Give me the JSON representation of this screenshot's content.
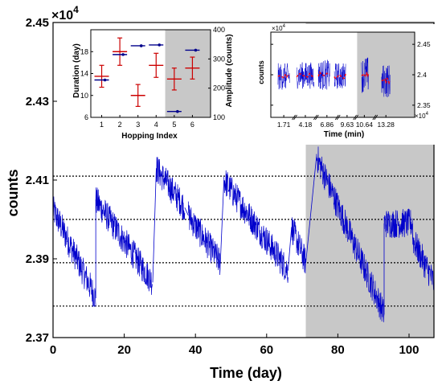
{
  "colors": {
    "signal": "#0000CC",
    "duration": "#CC0000",
    "amplitude": "#00008B",
    "shade": "#C8C8C8",
    "mean": "#FF0000"
  },
  "chart_data": [
    {
      "id": "main",
      "type": "line",
      "xlabel": "Time (day)",
      "ylabel": "counts",
      "exponent_label": "×10",
      "exponent_power": "4",
      "xlim": [
        0,
        107
      ],
      "ylim": [
        2.37,
        2.45
      ],
      "xticks": [
        "0",
        "20",
        "40",
        "60",
        "80",
        "100"
      ],
      "yticks": [
        "2.37",
        "2.39",
        "2.41",
        "2.43",
        "2.45"
      ],
      "hlines": [
        2.411,
        2.4,
        2.389,
        2.378
      ],
      "shaded_x": [
        71,
        107
      ],
      "segments": [
        {
          "x": [
            0,
            12
          ],
          "y": [
            2.4025,
            2.38
          ]
        },
        {
          "x": [
            12,
            28
          ],
          "y": [
            2.405,
            2.384
          ]
        },
        {
          "x": [
            29,
            37
          ],
          "y": [
            2.413,
            2.403
          ]
        },
        {
          "x": [
            38,
            47
          ],
          "y": [
            2.401,
            2.389
          ]
        },
        {
          "x": [
            48,
            66
          ],
          "y": [
            2.41,
            2.387
          ]
        },
        {
          "x": [
            67,
            71
          ],
          "y": [
            2.398,
            2.389
          ]
        },
        {
          "x": [
            74,
            93
          ],
          "y": [
            2.416,
            2.376
          ]
        },
        {
          "x": [
            93,
            101
          ],
          "y": [
            2.399,
            2.399
          ]
        },
        {
          "x": [
            101,
            107
          ],
          "y": [
            2.395,
            2.384
          ]
        }
      ]
    },
    {
      "id": "inset-left",
      "type": "errorbar",
      "xlabel": "Hopping Index",
      "ylabel_left": "Duration (day)",
      "ylabel_right": "Amplitude (counts)",
      "xlim": [
        0.4,
        7
      ],
      "ylim_left": [
        6,
        22
      ],
      "ylim_right": [
        100,
        400
      ],
      "xticks": [
        "1",
        "2",
        "3",
        "4",
        "5",
        "6"
      ],
      "yticks_left": [
        "6",
        "10",
        "14",
        "18"
      ],
      "yticks_right": [
        "100",
        "200",
        "300",
        "400"
      ],
      "shaded_x": [
        4.5,
        7
      ],
      "duration": [
        {
          "x": 1,
          "y": 13.5,
          "err": 2.0
        },
        {
          "x": 2,
          "y": 18.0,
          "err": 2.5
        },
        {
          "x": 3,
          "y": 10.0,
          "err": 2.0
        },
        {
          "x": 4,
          "y": 15.5,
          "err": 2.2
        },
        {
          "x": 5,
          "y": 13.0,
          "err": 2.0
        },
        {
          "x": 6,
          "y": 15.0,
          "err": 2.0
        }
      ],
      "amplitude": [
        {
          "x": 1,
          "y": 228
        },
        {
          "x": 2,
          "y": 315
        },
        {
          "x": 3,
          "y": 345
        },
        {
          "x": 4,
          "y": 348
        },
        {
          "x": 5,
          "y": 120
        },
        {
          "x": 6,
          "y": 330
        }
      ]
    },
    {
      "id": "inset-right",
      "type": "line",
      "xlabel": "Time (min)",
      "ylabel": "counts",
      "exponent_label": "×10",
      "exponent_power": "4",
      "x_exponent_label": "×10",
      "x_exponent_power": "4",
      "xticks": [
        "1.71",
        "4.18",
        "6.86",
        "9.63",
        "10.64",
        "13.28"
      ],
      "yticks": [
        "2.35",
        "2.4",
        "2.45"
      ],
      "ylim": [
        2.33,
        2.47
      ],
      "shaded_x": [
        0.6,
        1.0
      ],
      "segments": [
        {
          "x": [
            0.05,
            0.13
          ],
          "mean": 2.397,
          "spread": 0.022
        },
        {
          "x": [
            0.18,
            0.3
          ],
          "mean": 2.399,
          "spread": 0.022
        },
        {
          "x": [
            0.33,
            0.41
          ],
          "mean": 2.4,
          "spread": 0.025
        },
        {
          "x": [
            0.44,
            0.52
          ],
          "mean": 2.398,
          "spread": 0.022
        },
        {
          "x": [
            0.63,
            0.68
          ],
          "mean": 2.4,
          "spread": 0.03
        },
        {
          "x": [
            0.77,
            0.83
          ],
          "mean": 2.39,
          "spread": 0.028
        }
      ]
    }
  ]
}
